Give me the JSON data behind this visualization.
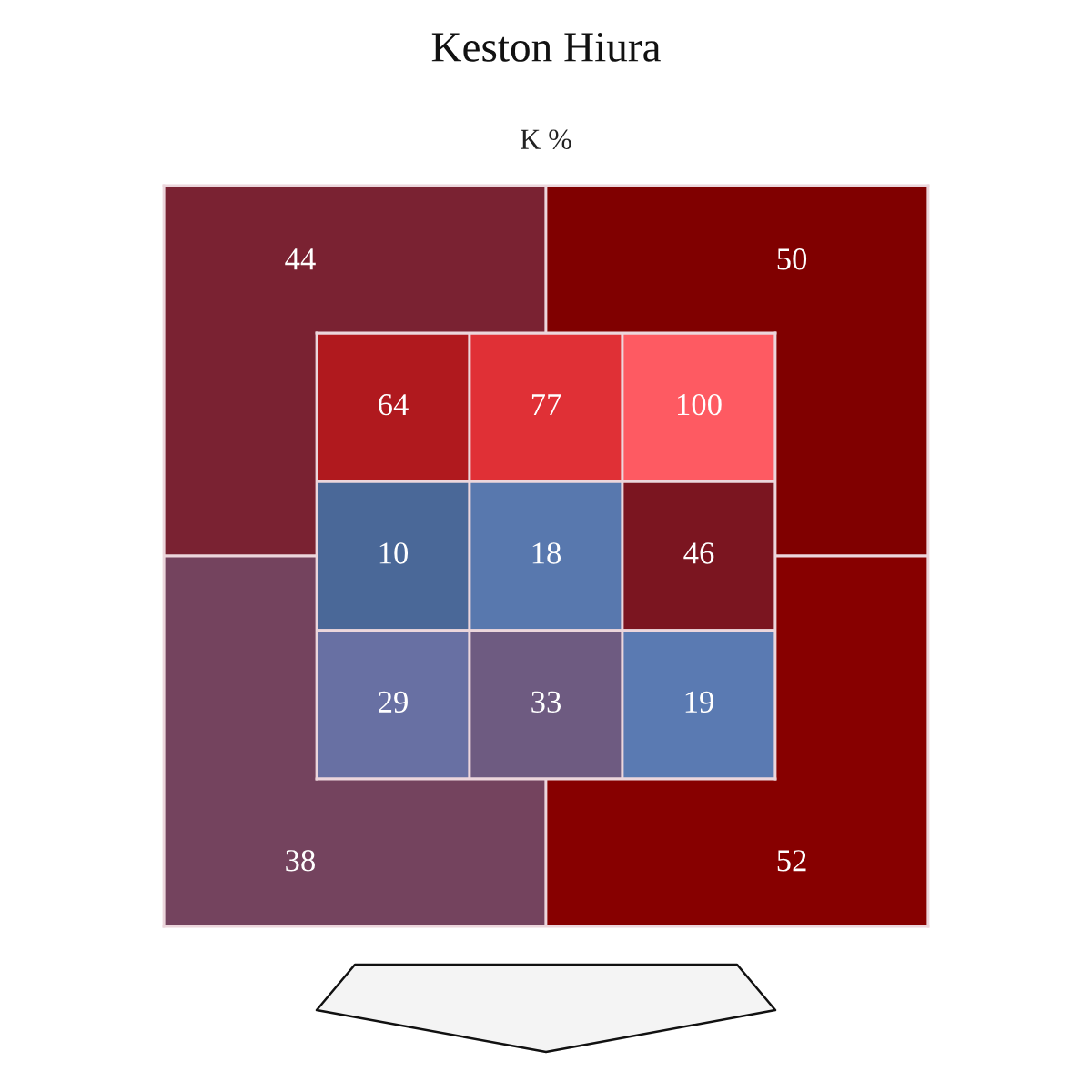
{
  "chart_data": [
    {
      "type": "heatmap",
      "title": "Keston Hiura",
      "subtitle": "K %",
      "categories": [
        null,
        null,
        null
      ],
      "y_categories": [
        null,
        null,
        null
      ],
      "cells": [
        [
          64,
          77,
          100
        ],
        [
          10,
          18,
          46
        ],
        [
          29,
          33,
          19
        ]
      ],
      "colors": [
        [
          "#b0191e",
          "#e03036",
          "#fe5a62"
        ],
        [
          "#4a6898",
          "#5878ae",
          "#7b1520"
        ],
        [
          "#6870a3",
          "#6e5b81",
          "#5a7ab2"
        ]
      ],
      "data_labels": true
    },
    {
      "type": "heatmap",
      "categories": [
        null,
        null
      ],
      "y_categories": [
        null,
        null
      ],
      "cells": [
        [
          44,
          50
        ],
        [
          38,
          52
        ]
      ],
      "colors": [
        [
          "#7a2232",
          "#800000"
        ],
        [
          "#74435e",
          "#870000"
        ]
      ],
      "data_labels": true
    }
  ]
}
